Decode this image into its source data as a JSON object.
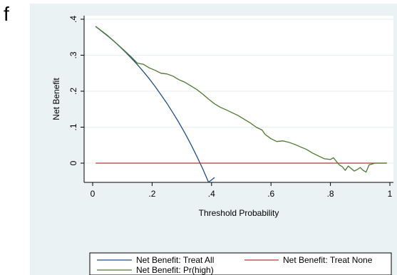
{
  "panel_label": "f",
  "chart_data": {
    "type": "line",
    "xlabel": "Threshold Probability",
    "ylabel": "Net Benefit",
    "xlim": [
      0,
      1
    ],
    "ylim": [
      -0.05,
      0.42
    ],
    "xticks": [
      0,
      0.2,
      0.4,
      0.6,
      0.8,
      1
    ],
    "xtick_labels": [
      "0",
      ".2",
      ".4",
      ".6",
      ".8",
      "1"
    ],
    "yticks": [
      0,
      0.1,
      0.2,
      0.3,
      0.4
    ],
    "ytick_labels": [
      "0",
      ".1",
      ".2",
      ".3",
      ".4"
    ],
    "grid": true,
    "legend_position": "bottom",
    "series": [
      {
        "name": "Net Benefit: Treat All",
        "color": "#1f4e8c",
        "x": [
          0.01,
          0.03,
          0.05,
          0.07,
          0.09,
          0.11,
          0.13,
          0.15,
          0.17,
          0.19,
          0.21,
          0.23,
          0.25,
          0.27,
          0.29,
          0.31,
          0.33,
          0.35,
          0.37,
          0.39,
          0.41
        ],
        "y": [
          0.38,
          0.367,
          0.354,
          0.34,
          0.325,
          0.309,
          0.292,
          0.274,
          0.255,
          0.235,
          0.213,
          0.19,
          0.166,
          0.14,
          0.113,
          0.084,
          0.053,
          0.02,
          -0.015,
          -0.053,
          -0.04
        ]
      },
      {
        "name": "Net Benefit: Treat None",
        "color": "#b5363b",
        "x": [
          0.01,
          0.99
        ],
        "y": [
          0,
          0
        ]
      },
      {
        "name": "Net Benefit: Pr(high)",
        "color": "#4a7a2a",
        "x": [
          0.01,
          0.05,
          0.1,
          0.13,
          0.15,
          0.17,
          0.19,
          0.21,
          0.23,
          0.25,
          0.27,
          0.29,
          0.31,
          0.33,
          0.35,
          0.37,
          0.39,
          0.41,
          0.43,
          0.45,
          0.47,
          0.49,
          0.51,
          0.53,
          0.55,
          0.57,
          0.58,
          0.6,
          0.62,
          0.64,
          0.66,
          0.68,
          0.7,
          0.72,
          0.74,
          0.76,
          0.78,
          0.8,
          0.81,
          0.82,
          0.83,
          0.84,
          0.85,
          0.86,
          0.87,
          0.88,
          0.89,
          0.9,
          0.91,
          0.92,
          0.93,
          0.95,
          0.99
        ],
        "y": [
          0.38,
          0.355,
          0.318,
          0.295,
          0.278,
          0.275,
          0.265,
          0.258,
          0.25,
          0.248,
          0.242,
          0.232,
          0.225,
          0.215,
          0.205,
          0.192,
          0.178,
          0.165,
          0.155,
          0.148,
          0.14,
          0.132,
          0.122,
          0.112,
          0.1,
          0.092,
          0.08,
          0.068,
          0.06,
          0.062,
          0.058,
          0.052,
          0.045,
          0.038,
          0.028,
          0.02,
          0.012,
          0.01,
          0.015,
          0.005,
          -0.005,
          -0.01,
          -0.02,
          -0.008,
          -0.015,
          -0.022,
          -0.018,
          -0.012,
          -0.02,
          -0.025,
          -0.005,
          0.0,
          0.0
        ]
      }
    ]
  }
}
